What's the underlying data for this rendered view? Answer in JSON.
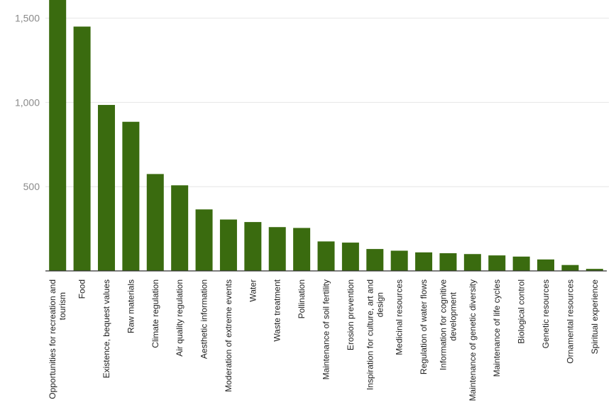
{
  "chart_data": {
    "type": "bar",
    "title": "",
    "xlabel": "",
    "ylabel": "",
    "ylim": [
      0,
      1550
    ],
    "yticks": [
      500,
      1000,
      1500
    ],
    "ytick_labels": [
      "500",
      "1,000",
      "1,500"
    ],
    "grid": true,
    "bar_color": "#3a6b0f",
    "categories": [
      [
        "Opportunities for recreation and",
        "tourism"
      ],
      [
        "Food"
      ],
      [
        "Existence, bequest values"
      ],
      [
        "Raw materials"
      ],
      [
        "Climate regulation"
      ],
      [
        "Air quality regulation"
      ],
      [
        "Aesthetic information"
      ],
      [
        "Moderation of extreme events"
      ],
      [
        "Water"
      ],
      [
        "Waste treatment"
      ],
      [
        "Pollination"
      ],
      [
        "Maintenance of soil fertility"
      ],
      [
        "Erosion prevention"
      ],
      [
        "Inspiration for culture, art and",
        "design"
      ],
      [
        "Medicinal resources"
      ],
      [
        "Regulation of water flows"
      ],
      [
        "Information for cognitive",
        "development"
      ],
      [
        "Maintenance of genetic diversity"
      ],
      [
        "Maintenance of life cycles"
      ],
      [
        "Biological control"
      ],
      [
        "Genetic resources"
      ],
      [
        "Ornamental resources"
      ],
      [
        "Spiritual experience"
      ]
    ],
    "values": [
      1650,
      1450,
      985,
      885,
      575,
      508,
      365,
      305,
      290,
      260,
      255,
      175,
      168,
      130,
      120,
      110,
      105,
      100,
      92,
      85,
      68,
      35,
      12
    ]
  }
}
